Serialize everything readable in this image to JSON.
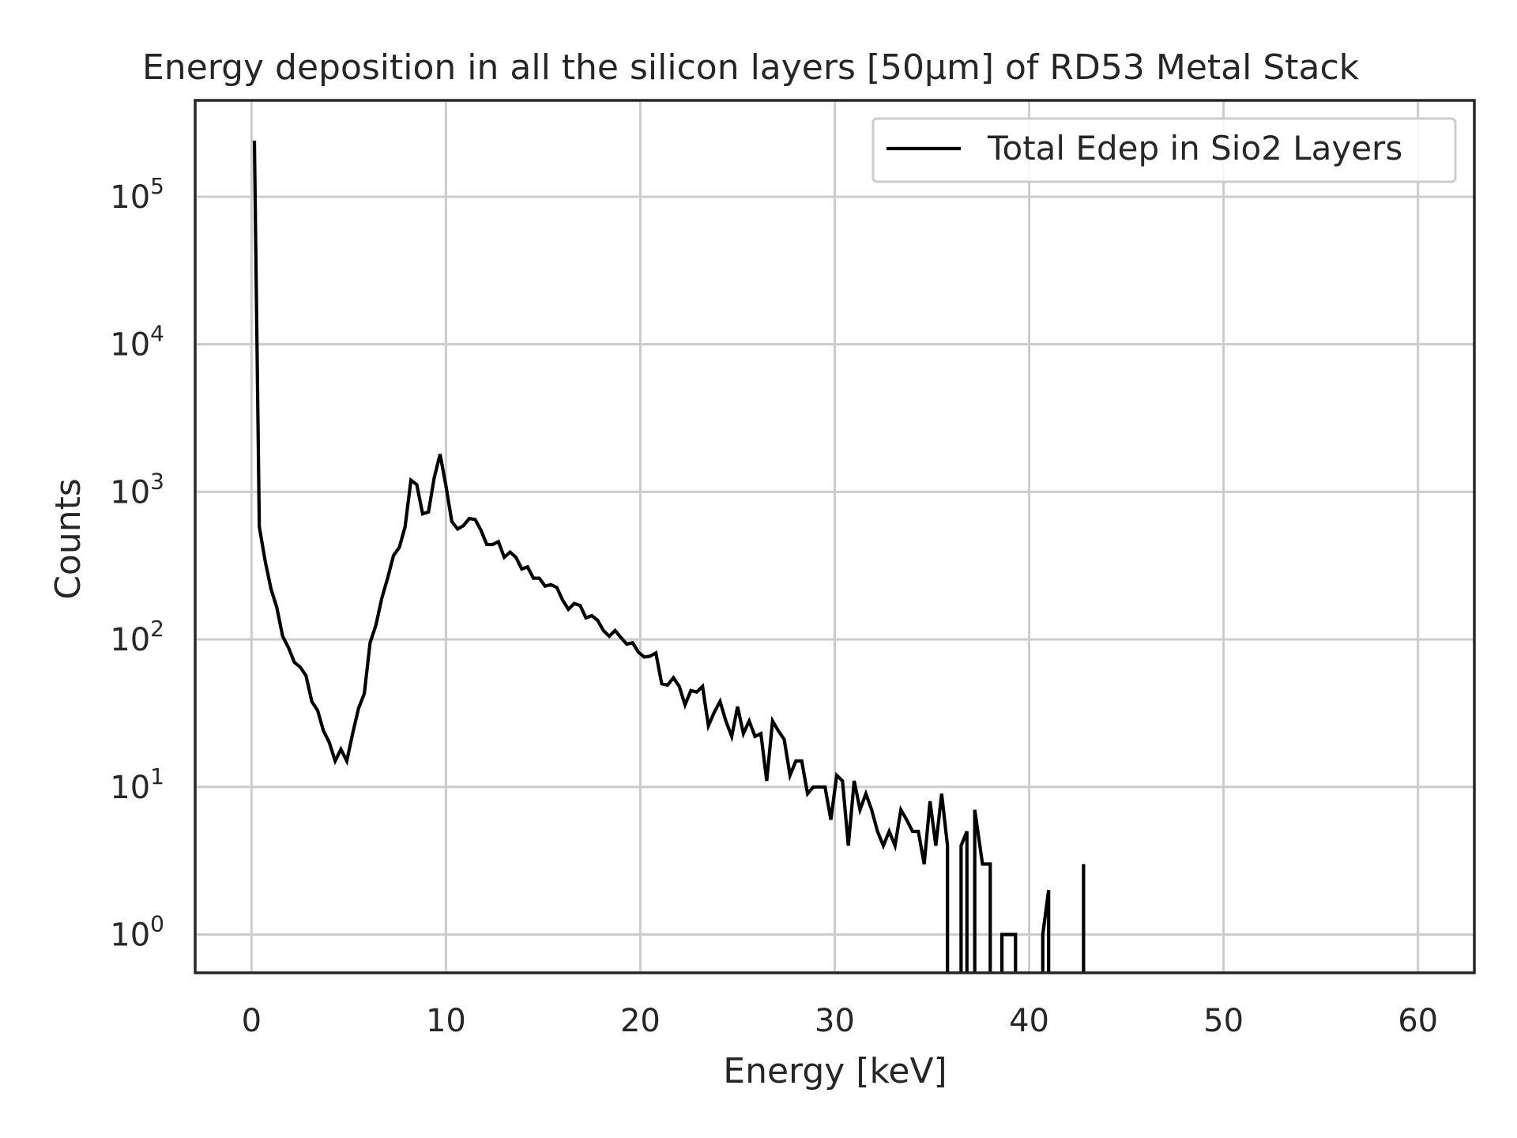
{
  "chart_data": {
    "type": "line",
    "title": "Energy deposition in all the silicon layers [50μm] of RD53 Metal Stack",
    "xlabel": "Energy [keV]",
    "ylabel": "Counts",
    "xlim": [
      -2.9,
      62.9
    ],
    "ylim": [
      0.55,
      450000
    ],
    "yscale": "log",
    "grid": true,
    "legend_position": "upper-right",
    "xticks": [
      0,
      10,
      20,
      30,
      40,
      50,
      60
    ],
    "xtick_labels": [
      "0",
      "10",
      "20",
      "30",
      "40",
      "50",
      "60"
    ],
    "yticks": [
      1,
      10,
      100,
      1000,
      10000,
      100000
    ],
    "ytick_labels": [
      {
        "base": "10",
        "exp": "0"
      },
      {
        "base": "10",
        "exp": "1"
      },
      {
        "base": "10",
        "exp": "2"
      },
      {
        "base": "10",
        "exp": "3"
      },
      {
        "base": "10",
        "exp": "4"
      },
      {
        "base": "10",
        "exp": "5"
      }
    ],
    "colors": {
      "line": "#000000",
      "grid": "#cccccc",
      "axes": "#262626",
      "background": "#ffffff"
    },
    "series": [
      {
        "name": "Total Edep in Sio2 Layers",
        "points": [
          [
            0.15,
            240000
          ],
          [
            0.4,
            580
          ],
          [
            0.7,
            340
          ],
          [
            1.0,
            220
          ],
          [
            1.3,
            165
          ],
          [
            1.6,
            105
          ],
          [
            1.9,
            88
          ],
          [
            2.2,
            70
          ],
          [
            2.5,
            65
          ],
          [
            2.8,
            57
          ],
          [
            3.1,
            38
          ],
          [
            3.4,
            33
          ],
          [
            3.7,
            24
          ],
          [
            4.0,
            20
          ],
          [
            4.3,
            15
          ],
          [
            4.6,
            18
          ],
          [
            4.9,
            15
          ],
          [
            5.2,
            23
          ],
          [
            5.5,
            34
          ],
          [
            5.8,
            43
          ],
          [
            6.1,
            95
          ],
          [
            6.4,
            125
          ],
          [
            6.7,
            190
          ],
          [
            7.0,
            260
          ],
          [
            7.3,
            370
          ],
          [
            7.6,
            420
          ],
          [
            7.9,
            580
          ],
          [
            8.2,
            1200
          ],
          [
            8.5,
            1120
          ],
          [
            8.8,
            710
          ],
          [
            9.1,
            730
          ],
          [
            9.4,
            1250
          ],
          [
            9.7,
            1800
          ],
          [
            10.0,
            1100
          ],
          [
            10.3,
            630
          ],
          [
            10.6,
            560
          ],
          [
            10.9,
            590
          ],
          [
            11.2,
            660
          ],
          [
            11.5,
            650
          ],
          [
            11.8,
            550
          ],
          [
            12.1,
            440
          ],
          [
            12.4,
            440
          ],
          [
            12.7,
            460
          ],
          [
            13.0,
            360
          ],
          [
            13.3,
            390
          ],
          [
            13.6,
            360
          ],
          [
            13.9,
            300
          ],
          [
            14.2,
            310
          ],
          [
            14.5,
            260
          ],
          [
            14.8,
            260
          ],
          [
            15.1,
            230
          ],
          [
            15.4,
            235
          ],
          [
            15.7,
            225
          ],
          [
            16.0,
            185
          ],
          [
            16.3,
            160
          ],
          [
            16.6,
            175
          ],
          [
            16.9,
            170
          ],
          [
            17.2,
            140
          ],
          [
            17.5,
            145
          ],
          [
            17.8,
            135
          ],
          [
            18.1,
            115
          ],
          [
            18.4,
            105
          ],
          [
            18.7,
            115
          ],
          [
            19.0,
            103
          ],
          [
            19.3,
            93
          ],
          [
            19.6,
            95
          ],
          [
            19.9,
            82
          ],
          [
            20.2,
            76
          ],
          [
            20.5,
            77
          ],
          [
            20.8,
            81
          ],
          [
            21.1,
            50
          ],
          [
            21.4,
            49
          ],
          [
            21.7,
            55
          ],
          [
            22.0,
            48
          ],
          [
            22.3,
            36
          ],
          [
            22.6,
            45
          ],
          [
            22.9,
            44
          ],
          [
            23.2,
            48
          ],
          [
            23.5,
            26
          ],
          [
            23.8,
            32
          ],
          [
            24.1,
            38
          ],
          [
            24.4,
            28
          ],
          [
            24.7,
            22
          ],
          [
            25.0,
            35
          ],
          [
            25.3,
            23
          ],
          [
            25.6,
            28
          ],
          [
            25.9,
            22
          ],
          [
            26.2,
            23
          ],
          [
            26.5,
            11
          ],
          [
            26.8,
            28
          ],
          [
            27.1,
            24
          ],
          [
            27.4,
            21
          ],
          [
            27.7,
            12
          ],
          [
            28.0,
            15
          ],
          [
            28.3,
            15
          ],
          [
            28.6,
            9
          ],
          [
            28.9,
            10
          ],
          [
            29.2,
            10
          ],
          [
            29.5,
            10
          ],
          [
            29.8,
            6
          ],
          [
            30.1,
            12
          ],
          [
            30.4,
            11
          ],
          [
            30.7,
            4
          ],
          [
            31.0,
            11
          ],
          [
            31.3,
            7
          ],
          [
            31.6,
            9
          ],
          [
            31.9,
            7
          ],
          [
            32.2,
            5
          ],
          [
            32.5,
            4
          ],
          [
            32.8,
            5
          ],
          [
            33.1,
            4
          ],
          [
            33.4,
            7
          ],
          [
            33.7,
            6
          ],
          [
            34.0,
            5
          ],
          [
            34.3,
            5
          ],
          [
            34.6,
            3
          ],
          [
            34.9,
            8
          ],
          [
            35.2,
            4
          ],
          [
            35.5,
            9
          ],
          [
            35.8,
            4
          ],
          [
            35.8,
            0.3
          ],
          [
            36.5,
            0.3
          ],
          [
            36.5,
            4
          ],
          [
            36.8,
            5
          ],
          [
            36.8,
            0.3
          ],
          [
            37.2,
            0.3
          ],
          [
            37.2,
            7
          ],
          [
            37.6,
            3
          ],
          [
            38.0,
            3
          ],
          [
            38.0,
            0.3
          ],
          [
            38.6,
            0.3
          ],
          [
            38.6,
            1
          ],
          [
            39.3,
            1
          ],
          [
            39.3,
            0.3
          ],
          [
            40.7,
            0.3
          ],
          [
            40.7,
            1
          ],
          [
            41.0,
            2
          ],
          [
            41.0,
            0.3
          ],
          [
            42.8,
            0.3
          ],
          [
            42.8,
            3
          ],
          [
            42.8,
            0.3
          ]
        ]
      }
    ]
  }
}
